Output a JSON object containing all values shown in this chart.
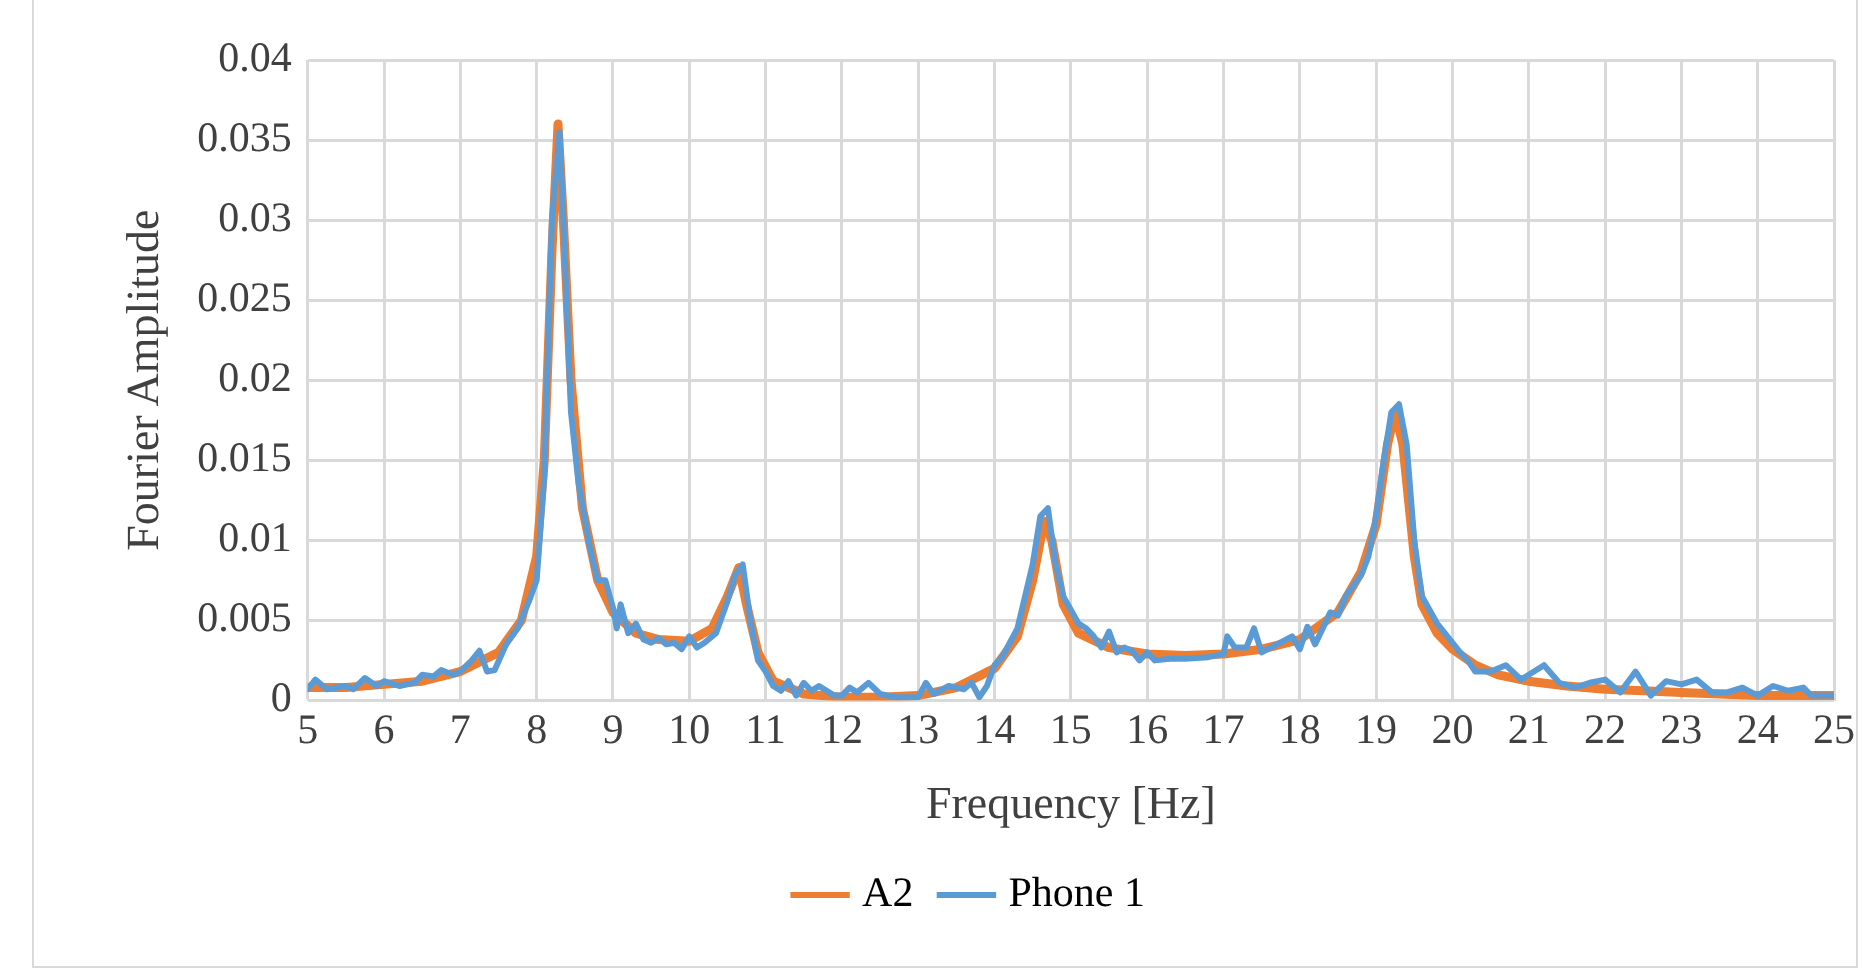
{
  "chart_data": {
    "type": "line",
    "xlabel": "Frequency [Hz]",
    "ylabel": "Fourier Amplitude",
    "xlim": [
      5,
      25
    ],
    "xticks": [
      5,
      6,
      7,
      8,
      9,
      10,
      11,
      12,
      13,
      14,
      15,
      16,
      17,
      18,
      19,
      20,
      21,
      22,
      23,
      24,
      25
    ],
    "ylim": [
      0,
      0.04
    ],
    "yticks": [
      0,
      0.005,
      0.01,
      0.015,
      0.02,
      0.025,
      0.03,
      0.035,
      0.04
    ],
    "grid": true,
    "legend": "bottom",
    "marker": "none",
    "line_style": "solid",
    "series": [
      {
        "name": "A2",
        "color": "#ed7d31",
        "x": [
          5,
          5.5,
          6,
          6.5,
          7,
          7.5,
          7.8,
          8.0,
          8.1,
          8.2,
          8.28,
          8.35,
          8.45,
          8.6,
          8.8,
          9,
          9.3,
          9.6,
          10,
          10.3,
          10.5,
          10.65,
          10.75,
          10.9,
          11.1,
          11.5,
          12,
          12.5,
          13,
          13.5,
          14,
          14.3,
          14.5,
          14.65,
          14.75,
          14.9,
          15.1,
          15.5,
          16,
          16.5,
          17,
          17.5,
          18,
          18.5,
          18.8,
          19,
          19.15,
          19.25,
          19.35,
          19.5,
          19.6,
          19.8,
          20,
          20.3,
          20.6,
          21,
          21.5,
          22,
          22.5,
          23,
          23.5,
          24,
          24.5,
          25
        ],
        "values": [
          0.0008,
          0.0008,
          0.001,
          0.0012,
          0.0018,
          0.003,
          0.005,
          0.009,
          0.015,
          0.028,
          0.036,
          0.03,
          0.02,
          0.012,
          0.0075,
          0.0055,
          0.0042,
          0.0038,
          0.0037,
          0.0045,
          0.0065,
          0.0083,
          0.006,
          0.003,
          0.0012,
          0.0004,
          0.0002,
          0.0002,
          0.0003,
          0.0008,
          0.002,
          0.004,
          0.0075,
          0.0112,
          0.01,
          0.006,
          0.0042,
          0.0033,
          0.0029,
          0.0028,
          0.0029,
          0.0032,
          0.0038,
          0.0055,
          0.008,
          0.011,
          0.016,
          0.018,
          0.016,
          0.009,
          0.006,
          0.0042,
          0.0032,
          0.0022,
          0.0016,
          0.0012,
          0.0009,
          0.0007,
          0.0006,
          0.0005,
          0.0004,
          0.0003,
          0.0003,
          0.0003
        ]
      },
      {
        "name": "Phone 1",
        "color": "#5b9bd5",
        "x": [
          5,
          5.1,
          5.25,
          5.5,
          5.6,
          5.75,
          5.9,
          6,
          6.2,
          6.4,
          6.5,
          6.65,
          6.75,
          6.9,
          7,
          7.15,
          7.25,
          7.35,
          7.45,
          7.6,
          7.75,
          7.9,
          8.0,
          8.1,
          8.2,
          8.3,
          8.35,
          8.45,
          8.55,
          8.7,
          8.8,
          8.9,
          9,
          9.05,
          9.1,
          9.2,
          9.3,
          9.4,
          9.5,
          9.6,
          9.7,
          9.8,
          9.9,
          10,
          10.1,
          10.2,
          10.35,
          10.5,
          10.6,
          10.7,
          10.8,
          10.9,
          11.0,
          11.1,
          11.2,
          11.3,
          11.4,
          11.5,
          11.6,
          11.7,
          11.9,
          12,
          12.1,
          12.2,
          12.35,
          12.5,
          12.7,
          13,
          13.1,
          13.2,
          13.4,
          13.6,
          13.7,
          13.8,
          13.9,
          14.0,
          14.1,
          14.3,
          14.5,
          14.6,
          14.7,
          14.8,
          14.9,
          15.1,
          15.2,
          15.3,
          15.4,
          15.5,
          15.6,
          15.7,
          15.8,
          15.9,
          16.0,
          16.1,
          16.3,
          16.5,
          16.8,
          17,
          17.05,
          17.15,
          17.3,
          17.4,
          17.5,
          17.7,
          17.9,
          18,
          18.1,
          18.2,
          18.4,
          18.5,
          18.6,
          18.8,
          18.9,
          19.0,
          19.1,
          19.2,
          19.3,
          19.4,
          19.5,
          19.6,
          19.8,
          19.9,
          20.1,
          20.2,
          20.3,
          20.5,
          20.7,
          20.9,
          21.2,
          21.4,
          21.6,
          21.8,
          22,
          22.2,
          22.4,
          22.6,
          22.8,
          23,
          23.2,
          23.4,
          23.6,
          23.8,
          24,
          24.2,
          24.4,
          24.6,
          24.7,
          24.9,
          25
        ],
        "values": [
          0.0007,
          0.0013,
          0.0007,
          0.0009,
          0.0007,
          0.0014,
          0.0009,
          0.0012,
          0.0009,
          0.0011,
          0.0016,
          0.0015,
          0.0019,
          0.0016,
          0.0018,
          0.0025,
          0.0031,
          0.0018,
          0.0019,
          0.0035,
          0.0045,
          0.0062,
          0.0075,
          0.014,
          0.03,
          0.0355,
          0.03,
          0.018,
          0.0135,
          0.0095,
          0.0075,
          0.0075,
          0.0058,
          0.0045,
          0.006,
          0.0042,
          0.0048,
          0.0038,
          0.0036,
          0.0039,
          0.0035,
          0.0036,
          0.0032,
          0.004,
          0.0033,
          0.0036,
          0.0042,
          0.0062,
          0.0078,
          0.0085,
          0.005,
          0.0025,
          0.0018,
          0.0009,
          0.0006,
          0.0012,
          0.0003,
          0.0011,
          0.0006,
          0.0009,
          0.0003,
          0.0003,
          0.0008,
          0.0005,
          0.0011,
          0.0004,
          0.0002,
          0.0002,
          0.0011,
          0.0004,
          0.0009,
          0.0007,
          0.0011,
          0.0002,
          0.0009,
          0.0022,
          0.0027,
          0.0045,
          0.0085,
          0.0115,
          0.012,
          0.0085,
          0.0065,
          0.0048,
          0.0045,
          0.004,
          0.0033,
          0.0043,
          0.003,
          0.0033,
          0.0031,
          0.0025,
          0.003,
          0.0025,
          0.0026,
          0.0026,
          0.0027,
          0.0029,
          0.004,
          0.0033,
          0.0033,
          0.0045,
          0.003,
          0.0035,
          0.004,
          0.0032,
          0.0046,
          0.0035,
          0.0055,
          0.0053,
          0.0065,
          0.0078,
          0.009,
          0.0115,
          0.015,
          0.018,
          0.0185,
          0.016,
          0.01,
          0.0065,
          0.0048,
          0.0042,
          0.003,
          0.0025,
          0.0018,
          0.0018,
          0.0022,
          0.0013,
          0.0022,
          0.0011,
          0.0008,
          0.0011,
          0.0013,
          0.0005,
          0.0018,
          0.0003,
          0.0012,
          0.001,
          0.0013,
          0.0005,
          0.0005,
          0.0008,
          0.0003,
          0.0009,
          0.0006,
          0.0008,
          0.0003,
          0.0003,
          0.0003
        ]
      }
    ]
  }
}
